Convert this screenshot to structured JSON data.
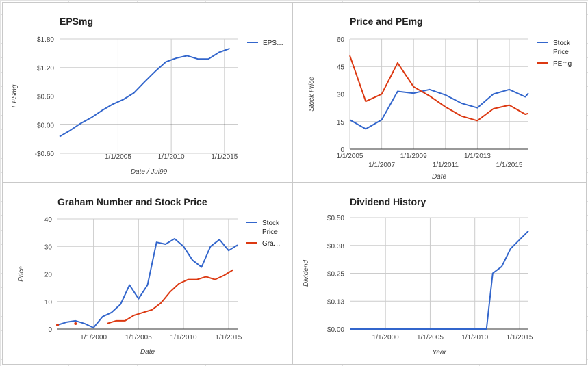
{
  "chart_data": [
    {
      "type": "line",
      "title": "EPSmg",
      "xlabel": "Date / Jul99",
      "ylabel": "EPSmg",
      "xlim": [
        1999.5,
        2016.3
      ],
      "ylim": [
        -0.6,
        1.8
      ],
      "grid": true,
      "legend": "right",
      "y_ticks": [
        {
          "v": 1.8,
          "label": "$1.80"
        },
        {
          "v": 1.2,
          "label": "$1.20"
        },
        {
          "v": 0.6,
          "label": "$0.60"
        },
        {
          "v": 0.0,
          "label": "$0.00"
        },
        {
          "v": -0.6,
          "label": "-$0.60"
        }
      ],
      "x_ticks": [
        {
          "v": 2005,
          "label": "1/1/2005"
        },
        {
          "v": 2010,
          "label": "1/1/2010"
        },
        {
          "v": 2015,
          "label": "1/1/2015"
        }
      ],
      "series": [
        {
          "name": "EPS…",
          "color": "#3366cc",
          "x": [
            1999.5,
            2000.5,
            2001.5,
            2002.5,
            2003.5,
            2004.5,
            2005.5,
            2006.5,
            2007.5,
            2008.5,
            2009.5,
            2010.5,
            2011.5,
            2012.5,
            2013.5,
            2014.5,
            2015.5
          ],
          "y": [
            -0.25,
            -0.12,
            0.03,
            0.15,
            0.3,
            0.43,
            0.53,
            0.67,
            0.9,
            1.12,
            1.32,
            1.4,
            1.45,
            1.38,
            1.38,
            1.52,
            1.6
          ]
        }
      ]
    },
    {
      "type": "line",
      "title": "Price and PEmg",
      "xlabel": "Date",
      "ylabel": "Stock Price",
      "xlim": [
        2005,
        2016.2
      ],
      "ylim": [
        0,
        60
      ],
      "grid": true,
      "legend": "right",
      "y_ticks": [
        {
          "v": 60,
          "label": "60"
        },
        {
          "v": 45,
          "label": "45"
        },
        {
          "v": 30,
          "label": "30"
        },
        {
          "v": 15,
          "label": "15"
        },
        {
          "v": 0,
          "label": "0"
        }
      ],
      "x_ticks": [
        {
          "v": 2005,
          "label": "1/1/2005",
          "row": 0
        },
        {
          "v": 2007,
          "label": "1/1/2007",
          "row": 1
        },
        {
          "v": 2009,
          "label": "1/1/2009",
          "row": 0
        },
        {
          "v": 2011,
          "label": "1/1/2011",
          "row": 1
        },
        {
          "v": 2013,
          "label": "1/1/2013",
          "row": 0
        },
        {
          "v": 2015,
          "label": "1/1/2015",
          "row": 1
        }
      ],
      "series": [
        {
          "name": "Stock Price",
          "color": "#3366cc",
          "x": [
            2005,
            2006,
            2007,
            2008,
            2009,
            2010,
            2011,
            2012,
            2013,
            2014,
            2015,
            2016,
            2016.2
          ],
          "y": [
            16,
            11,
            16,
            31.5,
            30.5,
            32.5,
            29.5,
            25,
            22.5,
            30,
            32.5,
            28.5,
            30.5
          ]
        },
        {
          "name": "PEmg",
          "color": "#dc3912",
          "x": [
            2005,
            2006,
            2007,
            2008,
            2009,
            2010,
            2011,
            2012,
            2013,
            2014,
            2015,
            2016,
            2016.2
          ],
          "y": [
            51,
            26,
            30,
            47,
            34,
            29,
            23,
            18,
            15.5,
            22,
            24,
            19,
            19.5
          ]
        }
      ]
    },
    {
      "type": "line",
      "title": "Graham Number and Stock Price",
      "xlabel": "Date",
      "ylabel": "Price",
      "xlim": [
        1996,
        2016
      ],
      "ylim": [
        0,
        40
      ],
      "grid": true,
      "legend": "right",
      "y_ticks": [
        {
          "v": 40,
          "label": "40"
        },
        {
          "v": 30,
          "label": "30"
        },
        {
          "v": 20,
          "label": "20"
        },
        {
          "v": 10,
          "label": "10"
        },
        {
          "v": 0,
          "label": "0"
        }
      ],
      "x_ticks": [
        {
          "v": 2000,
          "label": "1/1/2000"
        },
        {
          "v": 2005,
          "label": "1/1/2005"
        },
        {
          "v": 2010,
          "label": "1/1/2010"
        },
        {
          "v": 2015,
          "label": "1/1/2015"
        }
      ],
      "series": [
        {
          "name": "Stock Price",
          "color": "#3366cc",
          "x": [
            1996,
            1997,
            1998,
            1999,
            2000,
            2001,
            2002,
            2003,
            2004,
            2005,
            2006,
            2007,
            2008,
            2009,
            2010,
            2011,
            2012,
            2013,
            2014,
            2015,
            2016
          ],
          "y": [
            1.5,
            2.5,
            3,
            2,
            0.5,
            4.5,
            6,
            9,
            16,
            11,
            16,
            31.5,
            30.8,
            32.8,
            30,
            25,
            22.5,
            30,
            32.5,
            28.5,
            30.5
          ]
        },
        {
          "name": "Gra…",
          "color": "#dc3912",
          "x": [
            2001.5,
            2002.5,
            2003.5,
            2004.5,
            2005.5,
            2006.5,
            2007.5,
            2008.5,
            2009.5,
            2010.5,
            2011.5,
            2012.5,
            2013.5,
            2014.5,
            2015.5
          ],
          "y": [
            2,
            3,
            3,
            5,
            6,
            7,
            9.5,
            13.5,
            16.5,
            18,
            18,
            19,
            18,
            19.5,
            21.5
          ],
          "dots": [
            {
              "x": 1996,
              "y": 1.5
            },
            {
              "x": 1998,
              "y": 2
            }
          ]
        }
      ]
    },
    {
      "type": "line",
      "title": "Dividend History",
      "xlabel": "Year",
      "ylabel": "Dividend",
      "xlim": [
        1996,
        2016
      ],
      "ylim": [
        0,
        0.5
      ],
      "grid": true,
      "legend": "none",
      "y_ticks": [
        {
          "v": 0.5,
          "label": "$0.50"
        },
        {
          "v": 0.375,
          "label": "$0.38"
        },
        {
          "v": 0.25,
          "label": "$0.25"
        },
        {
          "v": 0.125,
          "label": "$0.13"
        },
        {
          "v": 0,
          "label": "$0.00"
        }
      ],
      "x_ticks": [
        {
          "v": 2000,
          "label": "1/1/2000"
        },
        {
          "v": 2005,
          "label": "1/1/2005"
        },
        {
          "v": 2010,
          "label": "1/1/2010"
        },
        {
          "v": 2015,
          "label": "1/1/2015"
        }
      ],
      "series": [
        {
          "name": "",
          "color": "#3366cc",
          "x": [
            1996,
            2011.3,
            2012,
            2013,
            2014,
            2015,
            2016
          ],
          "y": [
            0,
            0,
            0.25,
            0.28,
            0.36,
            0.4,
            0.44
          ]
        }
      ]
    }
  ]
}
